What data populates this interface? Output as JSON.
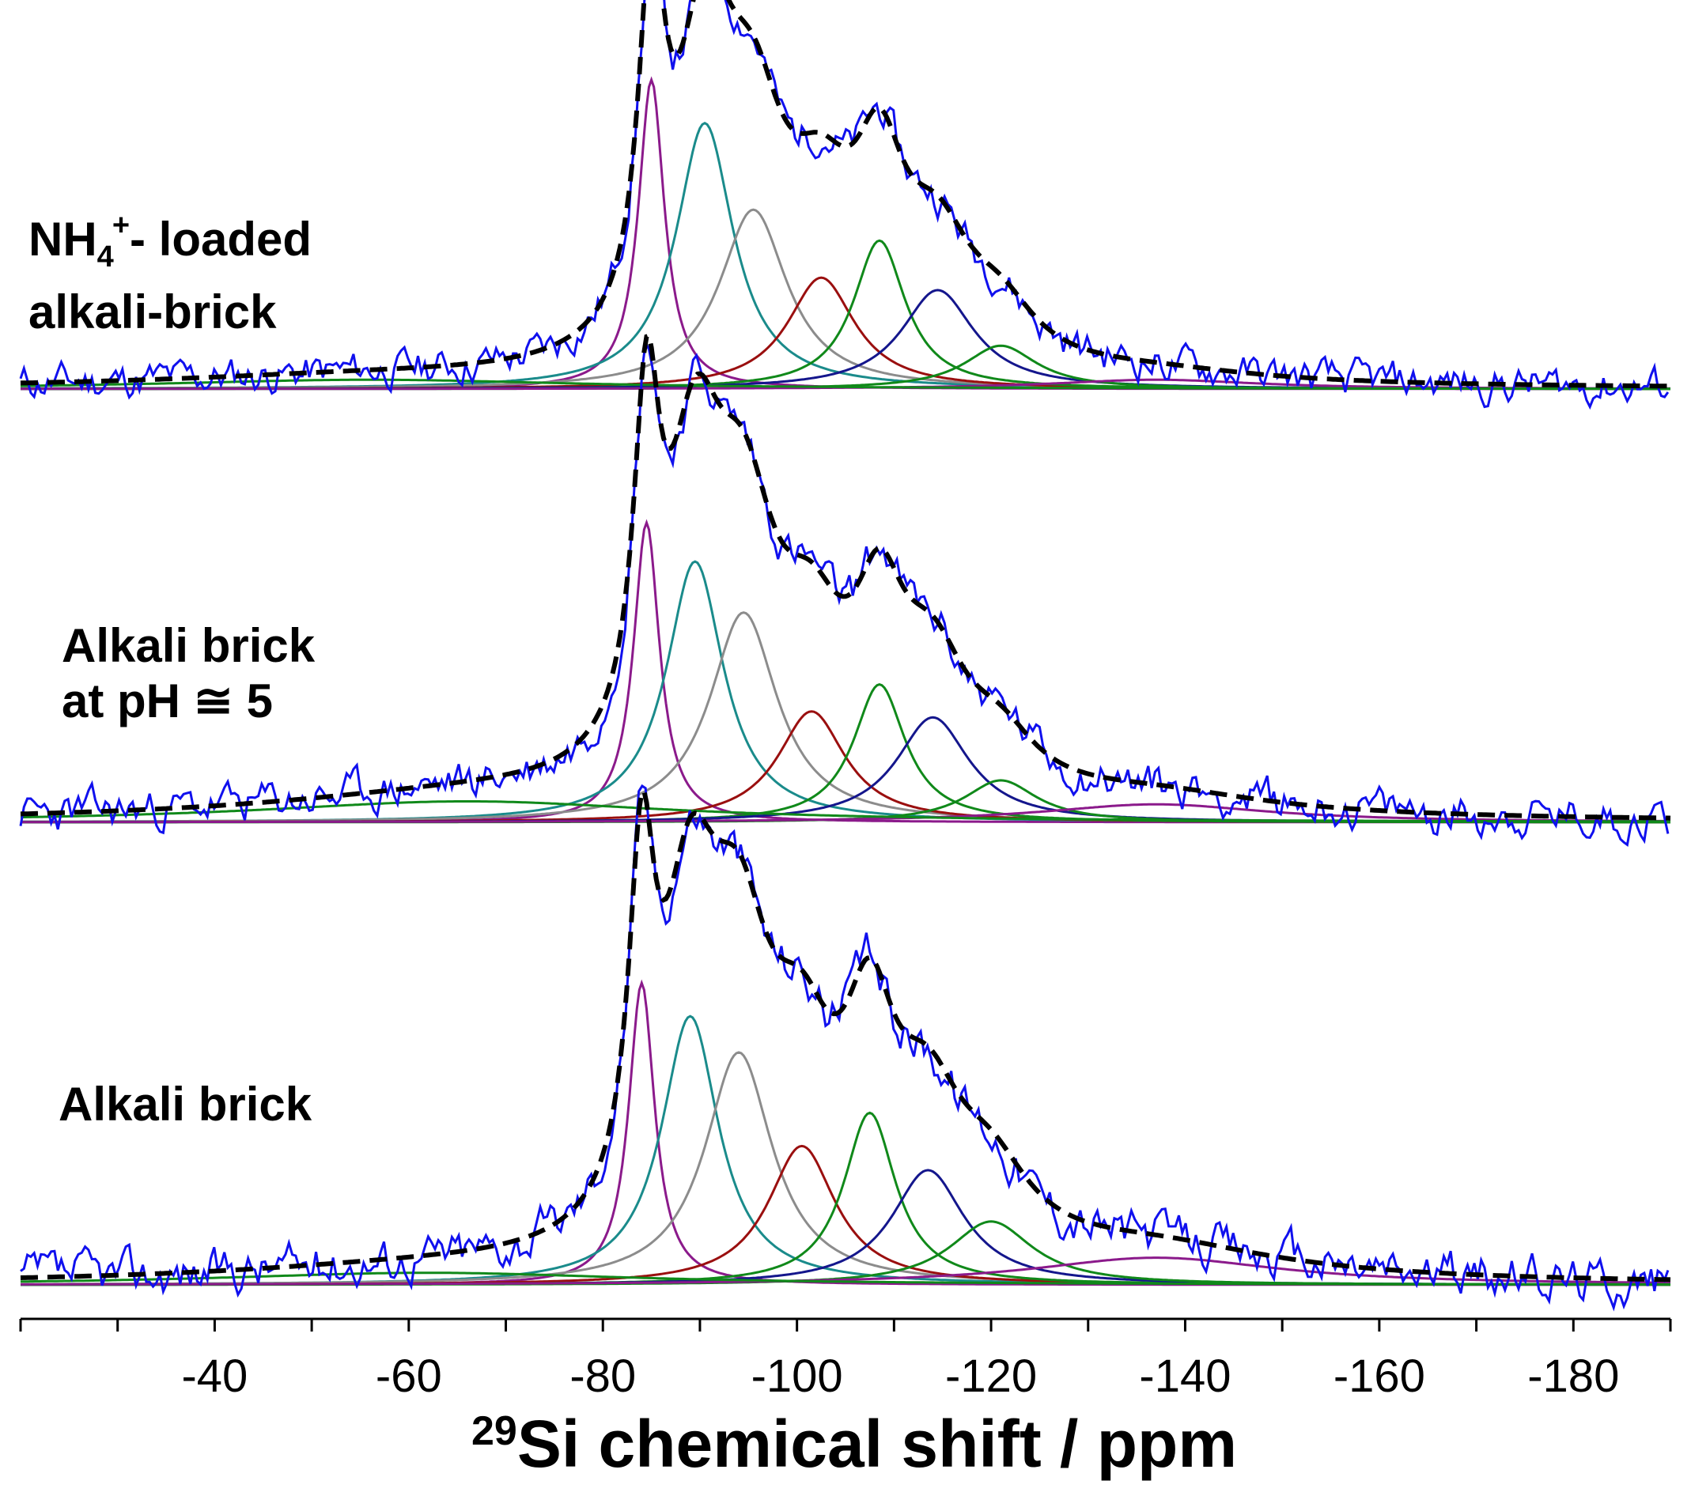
{
  "chart_data": {
    "type": "line",
    "xlabel": {
      "isotope": "29",
      "text": "Si chemical shift / ppm"
    },
    "xlim": [
      -20,
      -190
    ],
    "x_ticks": [
      -40,
      -60,
      -80,
      -100,
      -120,
      -140,
      -160,
      -180
    ],
    "x_tick_labels": [
      "-40",
      "-60",
      "-80",
      "-100",
      "-120",
      "-140",
      "-160",
      "-180"
    ],
    "colors": {
      "experimental": "#1010ee",
      "fit_sum": "#000000",
      "Q_a": "#8b1a8b",
      "Q_b": "#1a8b8b",
      "Q_c": "#8c8c8c",
      "Q_d": "#9a0f0f",
      "Q_e": "#10891a",
      "Q_f": "#14168c",
      "Q_g": "#10891a",
      "Q_h": "#8b1a8b",
      "Q_broad": "#10891a"
    },
    "panels": [
      {
        "label_lines": [
          "NH",
          "4",
          "+",
          "- loaded",
          "alkali-brick"
        ],
        "series": [
          {
            "name": "experimental",
            "style": "solid",
            "color_key": "experimental"
          },
          {
            "name": "fit sum",
            "style": "dashed",
            "color_key": "fit_sum"
          }
        ],
        "components": [
          {
            "key": "Q_a",
            "center": -85,
            "height": 100,
            "fwhm": 2.5
          },
          {
            "key": "Q_b",
            "center": -90.5,
            "height": 86,
            "fwhm": 5.5
          },
          {
            "key": "Q_c",
            "center": -95.5,
            "height": 58,
            "fwhm": 6.5
          },
          {
            "key": "Q_d",
            "center": -102.5,
            "height": 36,
            "fwhm": 6.5
          },
          {
            "key": "Q_e",
            "center": -108.5,
            "height": 48,
            "fwhm": 5
          },
          {
            "key": "Q_f",
            "center": -114.5,
            "height": 32,
            "fwhm": 7
          },
          {
            "key": "Q_g",
            "center": -121,
            "height": 14,
            "fwhm": 7
          },
          {
            "key": "Q_h",
            "center": -137,
            "height": 3,
            "fwhm": 20
          },
          {
            "key": "Q_broad",
            "center": -56,
            "height": 3,
            "fwhm": 40
          }
        ]
      },
      {
        "label_lines": [
          "Alkali brick",
          "at pH ≅ 5"
        ],
        "series": [
          {
            "name": "experimental",
            "style": "solid",
            "color_key": "experimental"
          },
          {
            "name": "fit sum",
            "style": "dashed",
            "color_key": "fit_sum"
          }
        ],
        "components": [
          {
            "key": "Q_a",
            "center": -84.5,
            "height": 100,
            "fwhm": 2.5
          },
          {
            "key": "Q_b",
            "center": -89.5,
            "height": 87,
            "fwhm": 5.5
          },
          {
            "key": "Q_c",
            "center": -94.5,
            "height": 70,
            "fwhm": 6.5
          },
          {
            "key": "Q_d",
            "center": -101.5,
            "height": 37,
            "fwhm": 6.5
          },
          {
            "key": "Q_e",
            "center": -108.5,
            "height": 46,
            "fwhm": 5
          },
          {
            "key": "Q_f",
            "center": -114,
            "height": 35,
            "fwhm": 7
          },
          {
            "key": "Q_g",
            "center": -121,
            "height": 14,
            "fwhm": 7
          },
          {
            "key": "Q_h",
            "center": -137,
            "height": 6,
            "fwhm": 22
          },
          {
            "key": "Q_broad",
            "center": -66,
            "height": 7,
            "fwhm": 40
          }
        ]
      },
      {
        "label_lines": [
          "Alkali brick"
        ],
        "series": [
          {
            "name": "experimental",
            "style": "solid",
            "color_key": "experimental"
          },
          {
            "name": "fit sum",
            "style": "dashed",
            "color_key": "fit_sum"
          }
        ],
        "components": [
          {
            "key": "Q_a",
            "center": -84,
            "height": 100,
            "fwhm": 2.5
          },
          {
            "key": "Q_b",
            "center": -89,
            "height": 89,
            "fwhm": 5.5
          },
          {
            "key": "Q_c",
            "center": -94,
            "height": 77,
            "fwhm": 6.5
          },
          {
            "key": "Q_d",
            "center": -100.5,
            "height": 46,
            "fwhm": 6.5
          },
          {
            "key": "Q_e",
            "center": -107.5,
            "height": 57,
            "fwhm": 5
          },
          {
            "key": "Q_f",
            "center": -113.5,
            "height": 38,
            "fwhm": 7
          },
          {
            "key": "Q_g",
            "center": -120,
            "height": 21,
            "fwhm": 8
          },
          {
            "key": "Q_h",
            "center": -137,
            "height": 9,
            "fwhm": 24
          },
          {
            "key": "Q_broad",
            "center": -62,
            "height": 4,
            "fwhm": 40
          }
        ]
      }
    ]
  }
}
